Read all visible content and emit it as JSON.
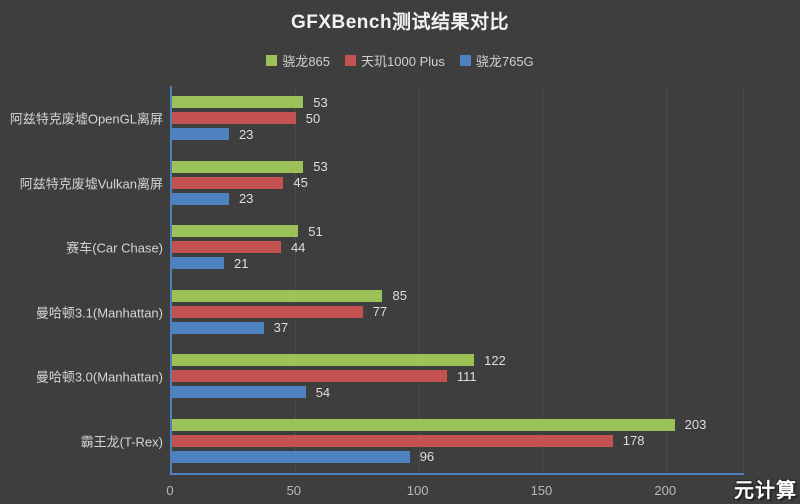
{
  "watermark": "元计算",
  "colors": {
    "background": "#3E3E3E",
    "gridline": "#4B4B4B",
    "axis_line": "#4E82BE",
    "title_text": "#F2F2F2",
    "category_text": "#D4D4D4",
    "value_text": "#DEDEDE",
    "tick_text": "#B8B8B8"
  },
  "chart_data": {
    "type": "bar",
    "orientation": "horizontal",
    "title": "GFXBench测试结果对比",
    "categories": [
      "阿兹特克废墟OpenGL离屏",
      "阿兹特克废墟Vulkan离屏",
      "赛车(Car Chase)",
      "曼哈顿3.1(Manhattan)",
      "曼哈顿3.0(Manhattan)",
      "霸王龙(T-Rex)"
    ],
    "series": [
      {
        "name": "骁龙865",
        "color": "#9CC158",
        "values": [
          53,
          53,
          51,
          85,
          122,
          203
        ]
      },
      {
        "name": "天玑1000 Plus",
        "color": "#C35250",
        "values": [
          50,
          45,
          44,
          77,
          111,
          178
        ]
      },
      {
        "name": "骁龙765G",
        "color": "#4E82BE",
        "values": [
          23,
          23,
          21,
          37,
          54,
          96
        ]
      }
    ],
    "x_ticks": [
      0,
      50,
      100,
      150,
      200
    ],
    "xlim": [
      0,
      231
    ],
    "grid": "vertical-gridlines",
    "legend_position": "top-center",
    "value_labels": true
  }
}
